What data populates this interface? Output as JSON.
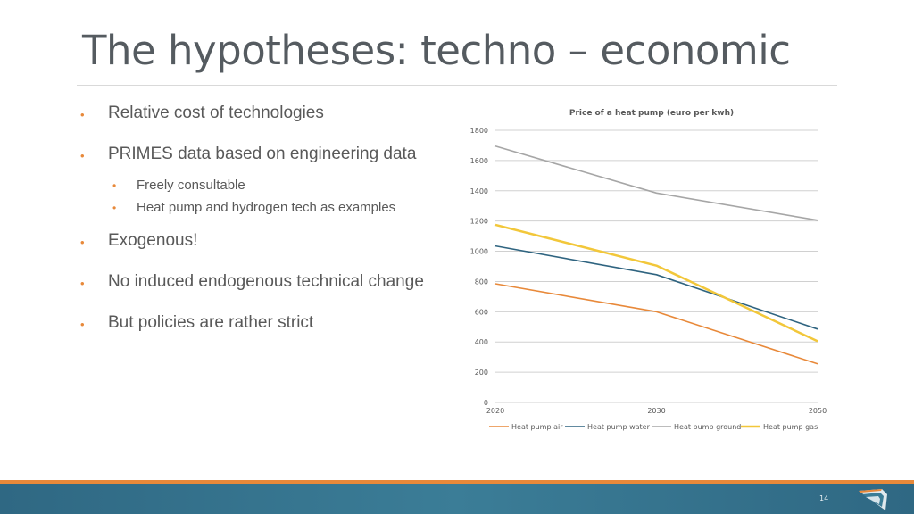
{
  "slide": {
    "title": "The hypotheses: techno – economic",
    "page_number": "14"
  },
  "bullets": [
    {
      "level": 1,
      "text": "Relative cost of technologies"
    },
    {
      "level": 1,
      "text": "PRIMES data based on engineering data"
    },
    {
      "level": 2,
      "text": "Freely consultable"
    },
    {
      "level": 2,
      "text": "Heat pump and hydrogen tech as examples"
    },
    {
      "level": 1,
      "text": "Exogenous!"
    },
    {
      "level": 1,
      "text": "No induced endogenous technical change"
    },
    {
      "level": 1,
      "text": "But policies are rather strict"
    }
  ],
  "colors": {
    "bullet": "#e8893a",
    "footer_band": "#2f6883",
    "footer_stripe": "#e8893a"
  },
  "chart_data": {
    "type": "line",
    "title": "Price of a heat pump (euro per kwh)",
    "xlabel": "",
    "ylabel": "",
    "x": [
      "2020",
      "2030",
      "2050"
    ],
    "ylim": [
      0,
      1800
    ],
    "yticks": [
      0,
      200,
      400,
      600,
      800,
      1000,
      1200,
      1400,
      1600,
      1800
    ],
    "grid": true,
    "legend_position": "bottom",
    "series": [
      {
        "name": "Heat pump air",
        "color": "#e8893a",
        "values": [
          785,
          600,
          255
        ]
      },
      {
        "name": "Heat pump water",
        "color": "#2f6480",
        "values": [
          1035,
          845,
          485
        ]
      },
      {
        "name": "Heat pump ground",
        "color": "#a6a6a6",
        "values": [
          1695,
          1385,
          1205
        ]
      },
      {
        "name": "Heat pump gas",
        "color": "#f2c73a",
        "values": [
          1175,
          905,
          405
        ]
      }
    ]
  }
}
